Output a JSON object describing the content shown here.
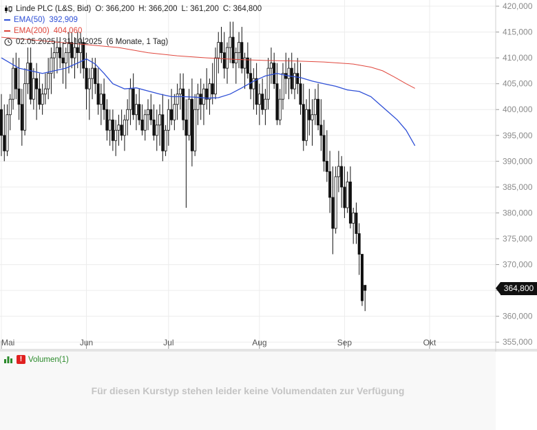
{
  "legend": {
    "instrument": "Linde PLC (L&S, Bid)",
    "open": "O: 366,200",
    "high": "H: 366,200",
    "low": "L: 361,200",
    "close": "C: 364,800",
    "ema50_label": "EMA(50)",
    "ema50_value": "392,909",
    "ema200_label": "EMA(200)",
    "ema200_value": "404,060",
    "range": "02.05.2025 - 31.10.2025",
    "period": "(6 Monate, 1 Tag)"
  },
  "colors": {
    "ema50": "#2e4fd6",
    "ema200": "#e0463c",
    "candle": "#111111",
    "grid": "#ececec"
  },
  "last_price_label": "364,800",
  "volume": {
    "label": "Volumen(1)",
    "warning_icon": "!",
    "message": "Für diesen Kurstyp stehen leider keine Volumendaten zur Verfügung"
  },
  "chart_data": {
    "type": "candlestick",
    "title": "Linde PLC (L&S, Bid)",
    "y_axis": {
      "ylim": [
        353.7,
        421.2
      ],
      "ticks": [
        355,
        360,
        365,
        370,
        375,
        380,
        385,
        390,
        395,
        400,
        405,
        410,
        415,
        420
      ],
      "tick_labels": [
        "355,000",
        "360,000",
        "365,000",
        "370,000",
        "375,000",
        "380,000",
        "385,000",
        "390,000",
        "395,000",
        "400,000",
        "405,000",
        "410,000",
        "415,000",
        "420,000"
      ]
    },
    "x_axis": {
      "tick_labels": [
        "Mai",
        "Jun",
        "Jul",
        "Aug",
        "Sep",
        "Okt"
      ],
      "tick_bars": [
        0,
        29,
        57,
        88,
        117,
        146
      ]
    },
    "grid": true,
    "legend_position": "top-left",
    "candles": [
      [
        400,
        403,
        391,
        395
      ],
      [
        395,
        401,
        390,
        392
      ],
      [
        392,
        401,
        391,
        399
      ],
      [
        399,
        403,
        396,
        402
      ],
      [
        402,
        410,
        400,
        408
      ],
      [
        408,
        411,
        402,
        404
      ],
      [
        404,
        410,
        398,
        401
      ],
      [
        401,
        404,
        393,
        396
      ],
      [
        396,
        408,
        395,
        405
      ],
      [
        405,
        412,
        403,
        409
      ],
      [
        409,
        412,
        401,
        402
      ],
      [
        402,
        408,
        400,
        406
      ],
      [
        406,
        409,
        398,
        404
      ],
      [
        404,
        407,
        400,
        401
      ],
      [
        401,
        405,
        399,
        403
      ],
      [
        403,
        407,
        401,
        404
      ],
      [
        404,
        410,
        402,
        407
      ],
      [
        407,
        412,
        403,
        410
      ],
      [
        410,
        413,
        406,
        411
      ],
      [
        411,
        414,
        407,
        412
      ],
      [
        412,
        414,
        408,
        410
      ],
      [
        410,
        413,
        405,
        409
      ],
      [
        409,
        412,
        404,
        411
      ],
      [
        411,
        415,
        407,
        413
      ],
      [
        413,
        415,
        408,
        410
      ],
      [
        410,
        414,
        406,
        412
      ],
      [
        412,
        415,
        408,
        411
      ],
      [
        411,
        415,
        407,
        413
      ],
      [
        413,
        414,
        406,
        408
      ],
      [
        408,
        411,
        400,
        404
      ],
      [
        404,
        408,
        398,
        406
      ],
      [
        406,
        410,
        402,
        408
      ],
      [
        408,
        410,
        403,
        405
      ],
      [
        405,
        408,
        399,
        401
      ],
      [
        401,
        405,
        397,
        403
      ],
      [
        403,
        406,
        398,
        400
      ],
      [
        400,
        402,
        394,
        396
      ],
      [
        396,
        400,
        393,
        398
      ],
      [
        398,
        400,
        392,
        394
      ],
      [
        394,
        398,
        391,
        396
      ],
      [
        396,
        399,
        393,
        397
      ],
      [
        397,
        400,
        394,
        395
      ],
      [
        395,
        399,
        392,
        398
      ],
      [
        398,
        402,
        395,
        400
      ],
      [
        400,
        406,
        397,
        404
      ],
      [
        404,
        407,
        398,
        399
      ],
      [
        399,
        403,
        396,
        401
      ],
      [
        401,
        404,
        397,
        398
      ],
      [
        398,
        401,
        395,
        396
      ],
      [
        396,
        400,
        394,
        399
      ],
      [
        399,
        402,
        396,
        400
      ],
      [
        400,
        403,
        397,
        398
      ],
      [
        398,
        401,
        394,
        395
      ],
      [
        395,
        400,
        392,
        397
      ],
      [
        397,
        401,
        393,
        399
      ],
      [
        399,
        403,
        390,
        392
      ],
      [
        392,
        397,
        391,
        396
      ],
      [
        396,
        402,
        393,
        400
      ],
      [
        400,
        404,
        397,
        398
      ],
      [
        398,
        403,
        396,
        401
      ],
      [
        401,
        405,
        398,
        403
      ],
      [
        403,
        407,
        400,
        404
      ],
      [
        404,
        407,
        396,
        398
      ],
      [
        398,
        402,
        381,
        395
      ],
      [
        395,
        404,
        394,
        402
      ],
      [
        402,
        406,
        389,
        392
      ],
      [
        392,
        403,
        391,
        400
      ],
      [
        400,
        405,
        397,
        403
      ],
      [
        403,
        406,
        398,
        401
      ],
      [
        401,
        405,
        397,
        404
      ],
      [
        404,
        408,
        400,
        402
      ],
      [
        402,
        406,
        399,
        405
      ],
      [
        405,
        409,
        401,
        403
      ],
      [
        403,
        412,
        402,
        410
      ],
      [
        410,
        415,
        407,
        413
      ],
      [
        413,
        416,
        409,
        411
      ],
      [
        411,
        415,
        406,
        408
      ],
      [
        408,
        413,
        405,
        412
      ],
      [
        412,
        417,
        409,
        414
      ],
      [
        414,
        417,
        408,
        409
      ],
      [
        409,
        412,
        405,
        411
      ],
      [
        411,
        415,
        408,
        413
      ],
      [
        413,
        416,
        407,
        408
      ],
      [
        408,
        411,
        404,
        410
      ],
      [
        410,
        413,
        406,
        407
      ],
      [
        407,
        410,
        402,
        404
      ],
      [
        404,
        408,
        400,
        406
      ],
      [
        406,
        409,
        399,
        401
      ],
      [
        401,
        405,
        397,
        403
      ],
      [
        403,
        406,
        399,
        400
      ],
      [
        400,
        404,
        397,
        402
      ],
      [
        402,
        410,
        400,
        408
      ],
      [
        408,
        412,
        405,
        409
      ],
      [
        409,
        411,
        404,
        405
      ],
      [
        405,
        409,
        397,
        398
      ],
      [
        398,
        404,
        397,
        402
      ],
      [
        402,
        409,
        400,
        407
      ],
      [
        407,
        411,
        403,
        406
      ],
      [
        406,
        410,
        402,
        408
      ],
      [
        408,
        411,
        403,
        404
      ],
      [
        404,
        409,
        402,
        407
      ],
      [
        407,
        410,
        403,
        405
      ],
      [
        405,
        409,
        399,
        401
      ],
      [
        401,
        405,
        392,
        394
      ],
      [
        394,
        402,
        393,
        400
      ],
      [
        400,
        404,
        395,
        398
      ],
      [
        398,
        402,
        393,
        399
      ],
      [
        399,
        404,
        397,
        402
      ],
      [
        402,
        405,
        396,
        397
      ],
      [
        397,
        402,
        392,
        395
      ],
      [
        395,
        398,
        388,
        390
      ],
      [
        390,
        396,
        386,
        388
      ],
      [
        388,
        392,
        380,
        383
      ],
      [
        383,
        389,
        372,
        377
      ],
      [
        377,
        389,
        376,
        387
      ],
      [
        387,
        392,
        384,
        389
      ],
      [
        389,
        391,
        381,
        385
      ],
      [
        385,
        389,
        379,
        381
      ],
      [
        381,
        388,
        380,
        386
      ],
      [
        386,
        389,
        377,
        378
      ],
      [
        378,
        381,
        374,
        380
      ],
      [
        380,
        382,
        374,
        376
      ],
      [
        376,
        378,
        368,
        372
      ],
      [
        372,
        372,
        362,
        363
      ],
      [
        366,
        366,
        361,
        365
      ]
    ],
    "ema50": [
      [
        0,
        410
      ],
      [
        3,
        409
      ],
      [
        6,
        408
      ],
      [
        10,
        407.5
      ],
      [
        14,
        407
      ],
      [
        18,
        407.5
      ],
      [
        22,
        408
      ],
      [
        26,
        409
      ],
      [
        29,
        409.8
      ],
      [
        32,
        408.8
      ],
      [
        35,
        407
      ],
      [
        38,
        405
      ],
      [
        42,
        404
      ],
      [
        46,
        404.2
      ],
      [
        50,
        403.6
      ],
      [
        54,
        403
      ],
      [
        58,
        402.5
      ],
      [
        62,
        402.5
      ],
      [
        66,
        402.4
      ],
      [
        70,
        402.2
      ],
      [
        74,
        402.3
      ],
      [
        78,
        403
      ],
      [
        82,
        404.2
      ],
      [
        86,
        405.5
      ],
      [
        90,
        406.5
      ],
      [
        94,
        407
      ],
      [
        98,
        406.5
      ],
      [
        102,
        406.2
      ],
      [
        106,
        405.5
      ],
      [
        110,
        405
      ],
      [
        114,
        404.5
      ],
      [
        118,
        403.8
      ],
      [
        122,
        403.5
      ],
      [
        126,
        402.5
      ],
      [
        129,
        401
      ],
      [
        132,
        399.5
      ],
      [
        135,
        398
      ],
      [
        138,
        396
      ],
      [
        141,
        393
      ]
    ],
    "ema200": [
      [
        0,
        414
      ],
      [
        10,
        413.5
      ],
      [
        20,
        413
      ],
      [
        30,
        412.5
      ],
      [
        40,
        412
      ],
      [
        50,
        411
      ],
      [
        60,
        410.4
      ],
      [
        70,
        410
      ],
      [
        80,
        409.7
      ],
      [
        90,
        409.5
      ],
      [
        100,
        409.4
      ],
      [
        110,
        409.2
      ],
      [
        120,
        408.8
      ],
      [
        126,
        408.2
      ],
      [
        130,
        407.5
      ],
      [
        134,
        406.3
      ],
      [
        138,
        405
      ],
      [
        141,
        404.1
      ]
    ]
  }
}
